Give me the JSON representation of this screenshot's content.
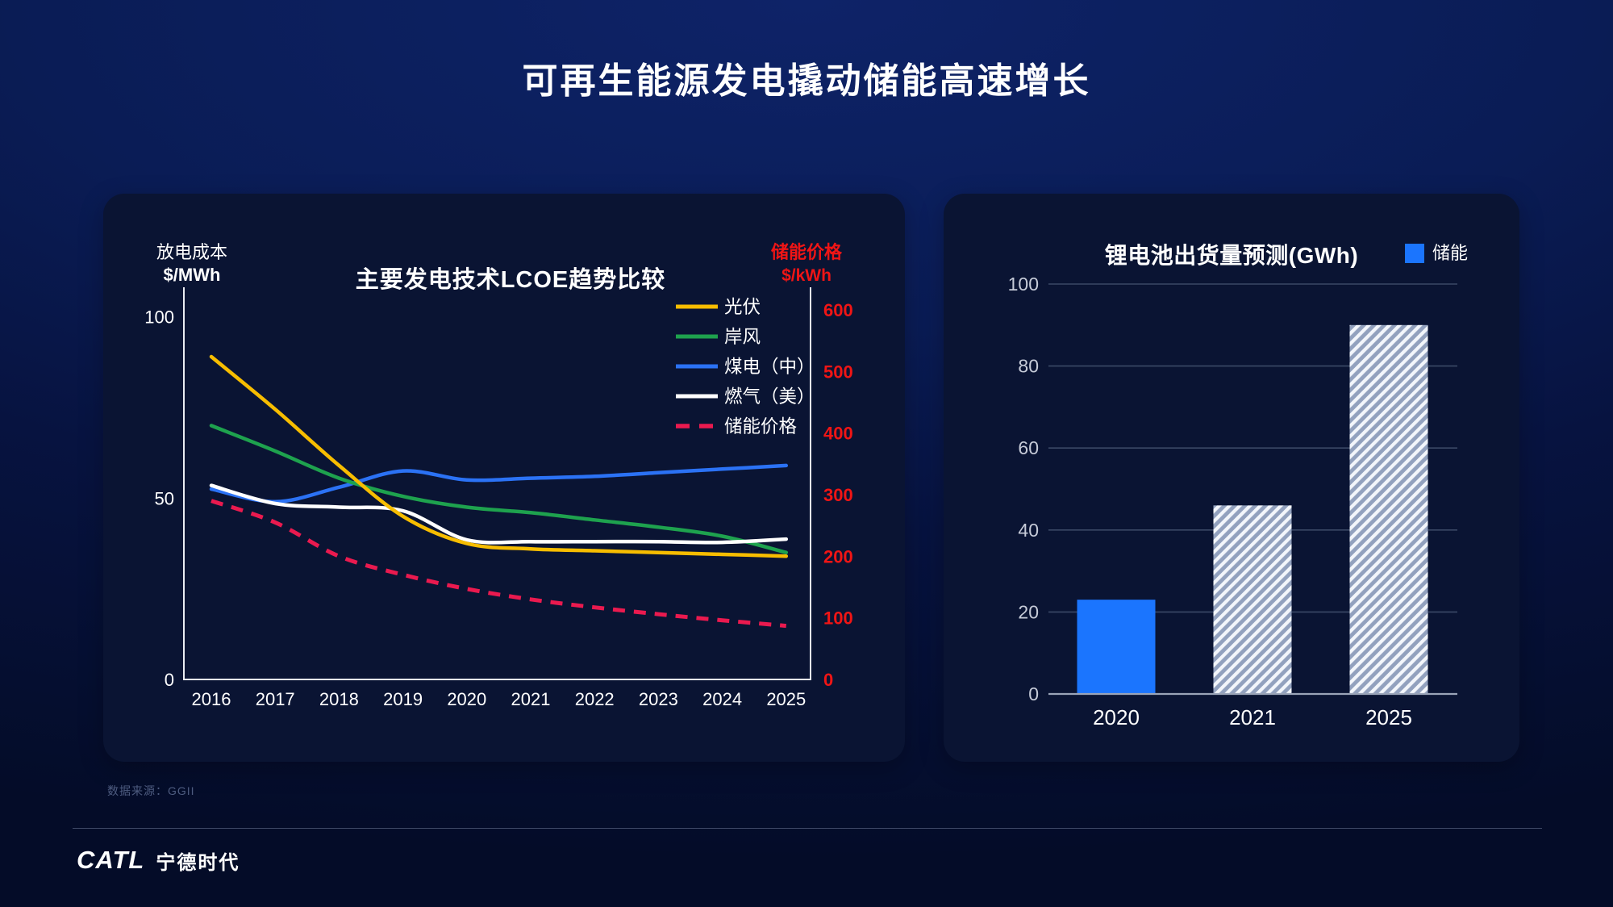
{
  "slide": {
    "title": "可再生能源发电撬动储能高速增长",
    "source_note": "数据来源：GGII",
    "logo": {
      "brand": "CATL",
      "brand_cn": "宁德时代"
    }
  },
  "chart_data": [
    {
      "type": "line",
      "title": "主要发电技术LCOE趋势比较",
      "x_categories": [
        "2016",
        "2017",
        "2018",
        "2019",
        "2020",
        "2021",
        "2022",
        "2023",
        "2024",
        "2025"
      ],
      "left_axis": {
        "title": [
          "放电成本",
          "$/MWh"
        ],
        "ticks": [
          0,
          50,
          100
        ],
        "range": [
          0,
          100
        ],
        "color": "#FFFFFF"
      },
      "right_axis": {
        "title": [
          "储能价格",
          "$/kWh"
        ],
        "ticks": [
          0,
          100,
          200,
          300,
          400,
          500,
          600
        ],
        "range": [
          0,
          600
        ],
        "color": "#F01515"
      },
      "legend_position": "top-right",
      "grid": false,
      "axis_line_color": "#E9ECF2",
      "series": [
        {
          "name": "光伏",
          "color": "#F7BD00",
          "dash": false,
          "axis": "left",
          "values": [
            89,
            74.5,
            59,
            45,
            37.5,
            36,
            35.5,
            35,
            34.5,
            34
          ]
        },
        {
          "name": "岸风",
          "color": "#1EA24E",
          "dash": false,
          "axis": "left",
          "values": [
            70,
            63,
            55.5,
            50.5,
            47.5,
            46,
            44,
            42,
            39.5,
            35
          ]
        },
        {
          "name": "煤电（中）",
          "color": "#2B72F5",
          "dash": false,
          "axis": "left",
          "values": [
            52.5,
            49,
            53,
            57.5,
            55,
            55.5,
            56,
            57,
            58,
            59
          ]
        },
        {
          "name": "燃气（美）",
          "color": "#FFFFFF",
          "dash": false,
          "axis": "left",
          "values": [
            53.5,
            48.5,
            47.5,
            46.5,
            38.5,
            38,
            38,
            38,
            37.8,
            38.7
          ]
        },
        {
          "name": "储能价格",
          "color": "#EA1A4F",
          "dash": true,
          "axis": "right",
          "values": [
            290,
            255,
            200,
            170,
            147,
            130,
            117,
            106,
            96,
            87
          ]
        }
      ]
    },
    {
      "type": "bar",
      "title": "锂电池出货量预测(GWh)",
      "categories": [
        "2020",
        "2021",
        "2025"
      ],
      "values": [
        23,
        46,
        90
      ],
      "bar_styles": [
        "solid",
        "hatched",
        "hatched"
      ],
      "ylim": [
        0,
        100
      ],
      "yticks": [
        0,
        20,
        40,
        60,
        80,
        100
      ],
      "legend": [
        {
          "label": "储能",
          "color": "#1B75FE"
        }
      ],
      "colors": {
        "bar_solid": "#1B75FE",
        "hatch_base": "#92A1BE",
        "hatch_stripe": "#F3F6FB",
        "gridline": "#3A4866",
        "baseline": "#9AA4B8",
        "tick_label": "#C6CBD8",
        "cat_label": "#FFFFFF"
      }
    }
  ]
}
